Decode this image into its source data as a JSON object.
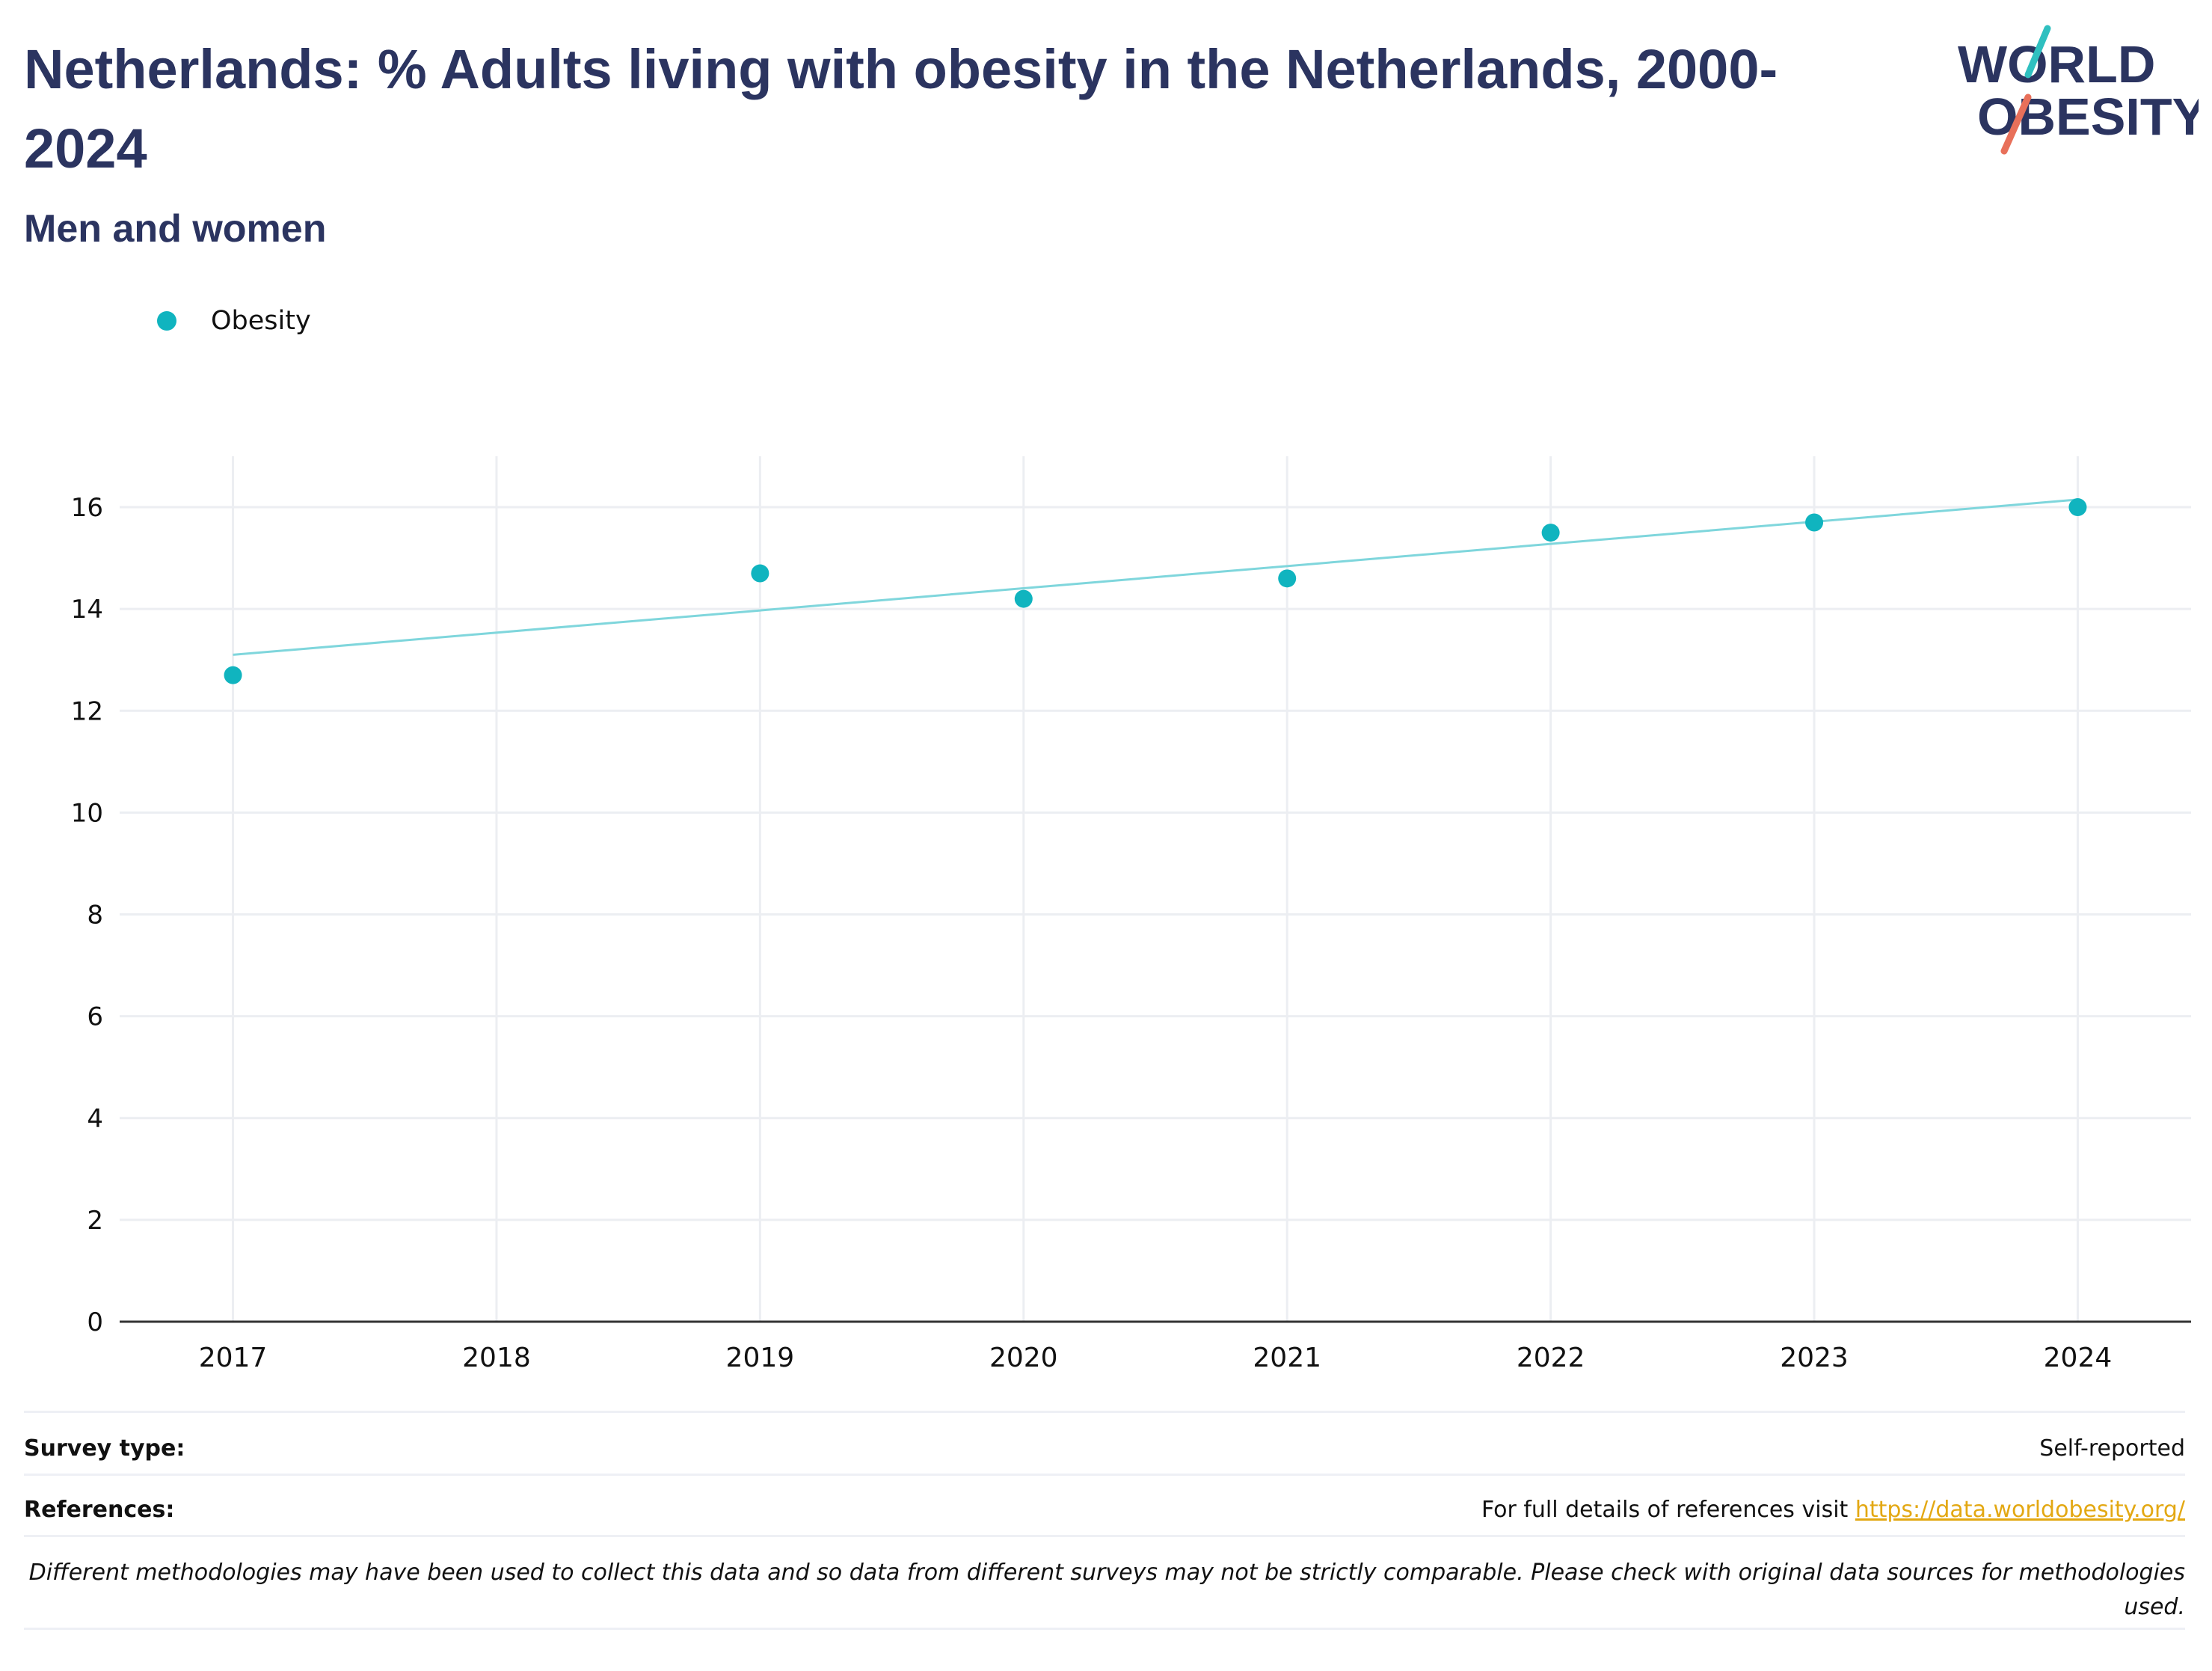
{
  "title": "Netherlands: % Adults living with obesity in the Netherlands, 2000-2024",
  "subtitle": "Men and women",
  "logo": {
    "line1": "WORLD",
    "line2": "OBESITY"
  },
  "colors": {
    "series": "#10b4bf",
    "trend": "#7fd6dc",
    "title": "#2b3460",
    "link": "#e3a813",
    "accent_top": "#2fc0c0",
    "accent_bottom": "#e8705a"
  },
  "chart_data": {
    "type": "scatter",
    "title": "Netherlands: % Adults living with obesity in the Netherlands, 2000-2024",
    "subtitle": "Men and women",
    "xlabel": "",
    "ylabel": "",
    "x_ticks": [
      "2017",
      "2018",
      "2019",
      "2020",
      "2021",
      "2022",
      "2023",
      "2024"
    ],
    "y_ticks": [
      "0",
      "2",
      "4",
      "6",
      "8",
      "10",
      "12",
      "14",
      "16"
    ],
    "xlim": [
      2016.57,
      2024.43
    ],
    "ylim": [
      0,
      17
    ],
    "grid": true,
    "legend": "top-left",
    "series": [
      {
        "name": "Obesity",
        "points": [
          {
            "x": 2017,
            "y": 12.7
          },
          {
            "x": 2019,
            "y": 14.7
          },
          {
            "x": 2020,
            "y": 14.2
          },
          {
            "x": 2021,
            "y": 14.6
          },
          {
            "x": 2022,
            "y": 15.5
          },
          {
            "x": 2023,
            "y": 15.7
          },
          {
            "x": 2024,
            "y": 16.0
          }
        ]
      }
    ],
    "trendline": {
      "from": {
        "x": 2017,
        "y": 13.1
      },
      "to": {
        "x": 2024,
        "y": 16.15
      }
    }
  },
  "footer": {
    "survey_label": "Survey type:",
    "survey_value": "Self-reported",
    "references_label": "References:",
    "references_text": "For full details of references visit ",
    "references_link": "https://data.worldobesity.org/",
    "note": "Different methodologies may have been used to collect this data and so data from different surveys may not be strictly comparable. Please check with original data sources for methodologies used."
  }
}
